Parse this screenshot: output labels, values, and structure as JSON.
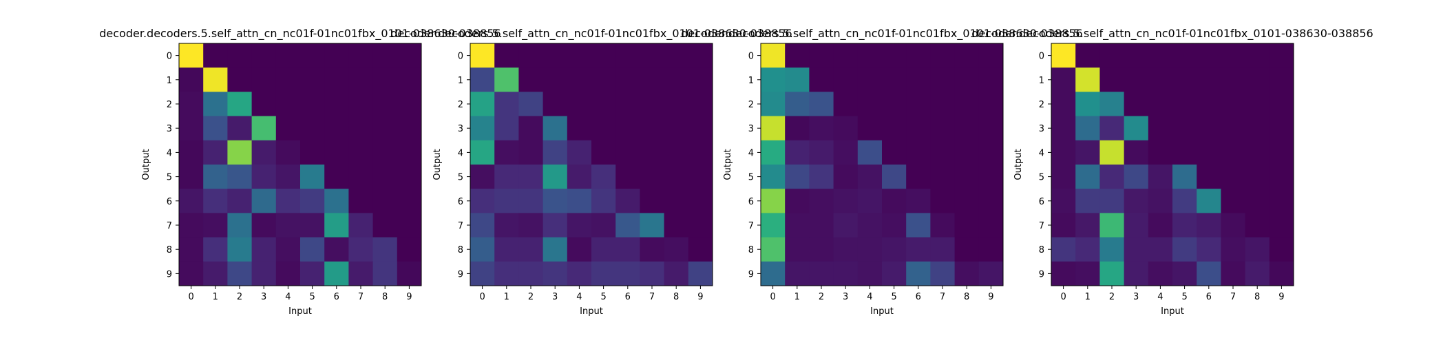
{
  "figure": {
    "background": "#ffffff",
    "colormap": "viridis"
  },
  "chart_data": [
    {
      "type": "heatmap",
      "title": "decoder.decoders.5.self_attn_cn_nc01f-01nc01fbx_0101-038630-038856",
      "xlabel": "Input",
      "ylabel": "Output",
      "x": [
        "0",
        "1",
        "2",
        "3",
        "4",
        "5",
        "6",
        "7",
        "8",
        "9"
      ],
      "y": [
        "0",
        "1",
        "2",
        "3",
        "4",
        "5",
        "6",
        "7",
        "8",
        "9"
      ],
      "vrange": [
        0,
        1
      ],
      "values": [
        [
          1.0,
          0.0,
          0.0,
          0.0,
          0.0,
          0.0,
          0.0,
          0.0,
          0.0,
          0.0
        ],
        [
          0.02,
          0.98,
          0.0,
          0.0,
          0.0,
          0.0,
          0.0,
          0.0,
          0.0,
          0.0
        ],
        [
          0.03,
          0.38,
          0.6,
          0.0,
          0.0,
          0.0,
          0.0,
          0.0,
          0.0,
          0.0
        ],
        [
          0.03,
          0.25,
          0.08,
          0.7,
          0.0,
          0.0,
          0.0,
          0.0,
          0.0,
          0.0
        ],
        [
          0.02,
          0.1,
          0.82,
          0.08,
          0.03,
          0.0,
          0.0,
          0.0,
          0.0,
          0.0
        ],
        [
          0.02,
          0.32,
          0.27,
          0.1,
          0.06,
          0.42,
          0.0,
          0.0,
          0.0,
          0.0
        ],
        [
          0.06,
          0.14,
          0.1,
          0.35,
          0.14,
          0.18,
          0.38,
          0.0,
          0.0,
          0.0
        ],
        [
          0.03,
          0.04,
          0.38,
          0.03,
          0.05,
          0.05,
          0.56,
          0.1,
          0.0,
          0.0
        ],
        [
          0.03,
          0.14,
          0.42,
          0.1,
          0.04,
          0.22,
          0.04,
          0.12,
          0.16,
          0.0
        ],
        [
          0.03,
          0.08,
          0.22,
          0.1,
          0.03,
          0.1,
          0.55,
          0.08,
          0.16,
          0.02
        ]
      ]
    },
    {
      "type": "heatmap",
      "title": "decoder.decoders.5.self_attn_cn_nc01f-01nc01fbx_0101-038630-038856",
      "xlabel": "Input",
      "ylabel": "Output",
      "x": [
        "0",
        "1",
        "2",
        "3",
        "4",
        "5",
        "6",
        "7",
        "8",
        "9"
      ],
      "y": [
        "0",
        "1",
        "2",
        "3",
        "4",
        "5",
        "6",
        "7",
        "8",
        "9"
      ],
      "vrange": [
        0,
        1
      ],
      "values": [
        [
          1.0,
          0.0,
          0.0,
          0.0,
          0.0,
          0.0,
          0.0,
          0.0,
          0.0,
          0.0
        ],
        [
          0.22,
          0.72,
          0.0,
          0.0,
          0.0,
          0.0,
          0.0,
          0.0,
          0.0,
          0.0
        ],
        [
          0.58,
          0.16,
          0.2,
          0.0,
          0.0,
          0.0,
          0.0,
          0.0,
          0.0,
          0.0
        ],
        [
          0.45,
          0.16,
          0.03,
          0.38,
          0.0,
          0.0,
          0.0,
          0.0,
          0.0,
          0.0
        ],
        [
          0.6,
          0.04,
          0.03,
          0.2,
          0.1,
          0.0,
          0.0,
          0.0,
          0.0,
          0.0
        ],
        [
          0.04,
          0.12,
          0.12,
          0.54,
          0.08,
          0.14,
          0.0,
          0.0,
          0.0,
          0.0
        ],
        [
          0.14,
          0.16,
          0.16,
          0.26,
          0.24,
          0.16,
          0.08,
          0.0,
          0.0,
          0.0
        ],
        [
          0.22,
          0.06,
          0.05,
          0.14,
          0.06,
          0.05,
          0.28,
          0.4,
          0.0,
          0.0
        ],
        [
          0.3,
          0.1,
          0.1,
          0.4,
          0.03,
          0.1,
          0.1,
          0.03,
          0.04,
          0.0
        ],
        [
          0.2,
          0.14,
          0.14,
          0.16,
          0.12,
          0.16,
          0.16,
          0.14,
          0.08,
          0.2
        ]
      ]
    },
    {
      "type": "heatmap",
      "title": "decoder.decoders.5.self_attn_cn_nc01f-01nc01fbx_0101-038630-038856",
      "xlabel": "Input",
      "ylabel": "Output",
      "x": [
        "0",
        "1",
        "2",
        "3",
        "4",
        "5",
        "6",
        "7",
        "8",
        "9"
      ],
      "y": [
        "0",
        "1",
        "2",
        "3",
        "4",
        "5",
        "6",
        "7",
        "8",
        "9"
      ],
      "vrange": [
        0,
        1
      ],
      "values": [
        [
          0.98,
          0.0,
          0.0,
          0.0,
          0.0,
          0.0,
          0.0,
          0.0,
          0.0,
          0.0
        ],
        [
          0.5,
          0.48,
          0.0,
          0.0,
          0.0,
          0.0,
          0.0,
          0.0,
          0.0,
          0.0
        ],
        [
          0.48,
          0.3,
          0.26,
          0.0,
          0.0,
          0.0,
          0.0,
          0.0,
          0.0,
          0.0
        ],
        [
          0.92,
          0.02,
          0.04,
          0.03,
          0.0,
          0.0,
          0.0,
          0.0,
          0.0,
          0.0
        ],
        [
          0.62,
          0.1,
          0.08,
          0.04,
          0.24,
          0.0,
          0.0,
          0.0,
          0.0,
          0.0
        ],
        [
          0.48,
          0.22,
          0.16,
          0.03,
          0.05,
          0.22,
          0.0,
          0.0,
          0.0,
          0.0
        ],
        [
          0.82,
          0.03,
          0.04,
          0.05,
          0.06,
          0.03,
          0.04,
          0.0,
          0.0,
          0.0
        ],
        [
          0.64,
          0.04,
          0.04,
          0.07,
          0.05,
          0.04,
          0.25,
          0.03,
          0.0,
          0.0
        ],
        [
          0.72,
          0.04,
          0.04,
          0.05,
          0.05,
          0.06,
          0.08,
          0.08,
          0.0,
          0.0
        ],
        [
          0.36,
          0.06,
          0.06,
          0.06,
          0.05,
          0.08,
          0.32,
          0.2,
          0.04,
          0.06
        ]
      ]
    },
    {
      "type": "heatmap",
      "title": "decoder.decoders.5.self_attn_cn_nc01f-01nc01fbx_0101-038630-038856",
      "xlabel": "Input",
      "ylabel": "Output",
      "x": [
        "0",
        "1",
        "2",
        "3",
        "4",
        "5",
        "6",
        "7",
        "8",
        "9"
      ],
      "y": [
        "0",
        "1",
        "2",
        "3",
        "4",
        "5",
        "6",
        "7",
        "8",
        "9"
      ],
      "vrange": [
        0,
        1
      ],
      "values": [
        [
          1.0,
          0.0,
          0.0,
          0.0,
          0.0,
          0.0,
          0.0,
          0.0,
          0.0,
          0.0
        ],
        [
          0.03,
          0.94,
          0.0,
          0.0,
          0.0,
          0.0,
          0.0,
          0.0,
          0.0,
          0.0
        ],
        [
          0.03,
          0.5,
          0.44,
          0.0,
          0.0,
          0.0,
          0.0,
          0.0,
          0.0,
          0.0
        ],
        [
          0.03,
          0.36,
          0.12,
          0.48,
          0.0,
          0.0,
          0.0,
          0.0,
          0.0,
          0.0
        ],
        [
          0.03,
          0.06,
          0.92,
          0.03,
          0.0,
          0.0,
          0.0,
          0.0,
          0.0,
          0.0
        ],
        [
          0.03,
          0.36,
          0.12,
          0.22,
          0.06,
          0.36,
          0.0,
          0.0,
          0.0,
          0.0
        ],
        [
          0.04,
          0.18,
          0.18,
          0.07,
          0.05,
          0.18,
          0.46,
          0.0,
          0.0,
          0.0
        ],
        [
          0.03,
          0.07,
          0.68,
          0.08,
          0.03,
          0.1,
          0.08,
          0.03,
          0.0,
          0.0
        ],
        [
          0.16,
          0.12,
          0.42,
          0.08,
          0.08,
          0.18,
          0.12,
          0.04,
          0.06,
          0.0
        ],
        [
          0.03,
          0.04,
          0.6,
          0.08,
          0.04,
          0.06,
          0.24,
          0.03,
          0.08,
          0.02
        ]
      ]
    }
  ]
}
